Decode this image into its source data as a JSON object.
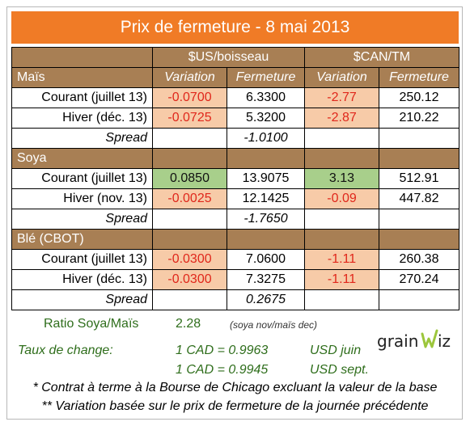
{
  "title": "Prix de fermeture - 8 mai 2013",
  "headers": {
    "us_group": "$US/boisseau",
    "can_group": "$CAN/TM",
    "first_section": "Maïs",
    "variation": "Variation",
    "fermeture": "Fermeture"
  },
  "sections": [
    {
      "name": "Maïs",
      "rows": [
        {
          "label": "Courant (juillet 13)",
          "us_var": "-0.0700",
          "us_close": "6.3300",
          "can_var": "-2.77",
          "can_close": "250.12"
        },
        {
          "label": "Hiver (déc. 13)",
          "us_var": "-0.0725",
          "us_close": "5.3200",
          "can_var": "-2.87",
          "can_close": "210.22"
        }
      ],
      "spread_label": "Spread",
      "spread_value": "-1.0100"
    },
    {
      "name": "Soya",
      "rows": [
        {
          "label": "Courant (juillet 13)",
          "us_var": "0.0850",
          "us_close": "13.9075",
          "can_var": "3.13",
          "can_close": "512.91"
        },
        {
          "label": "Hiver (nov. 13)",
          "us_var": "-0.0025",
          "us_close": "12.1425",
          "can_var": "-0.09",
          "can_close": "447.82"
        }
      ],
      "spread_label": "Spread",
      "spread_value": "-1.7650"
    },
    {
      "name": "Blé (CBOT)",
      "rows": [
        {
          "label": "Courant (juillet 13)",
          "us_var": "-0.0300",
          "us_close": "7.0600",
          "can_var": "-1.11",
          "can_close": "260.38"
        },
        {
          "label": "Hiver (déc. 13)",
          "us_var": "-0.0300",
          "us_close": "7.3275",
          "can_var": "-1.11",
          "can_close": "270.24"
        }
      ],
      "spread_label": "Spread",
      "spread_value": "0.2675"
    }
  ],
  "ratio": {
    "label": "Ratio Soya/Maïs",
    "value": "2.28",
    "note": "(soya nov/maïs dec)"
  },
  "exchange": {
    "label": "Taux de change:",
    "rate1": "1 CAD =  0.9963",
    "unit1": "USD juin",
    "rate2": "1 CAD =  0.9945",
    "unit2": "USD sept."
  },
  "logo": {
    "text_left": "grain",
    "text_right": "iz"
  },
  "notes": [
    "* Contrat à terme à la Bourse de Chicago excluant la valeur de la base",
    "** Variation basée sur le prix de fermeture de la journée précédente"
  ],
  "colors": {
    "header_orange": "#f07b26",
    "section_brown": "#a87f54",
    "negative_bg": "#f7cba8",
    "negative_text": "#e0271b",
    "positive_bg": "#a8cf8b",
    "ratio_green": "#2f6e1c"
  }
}
